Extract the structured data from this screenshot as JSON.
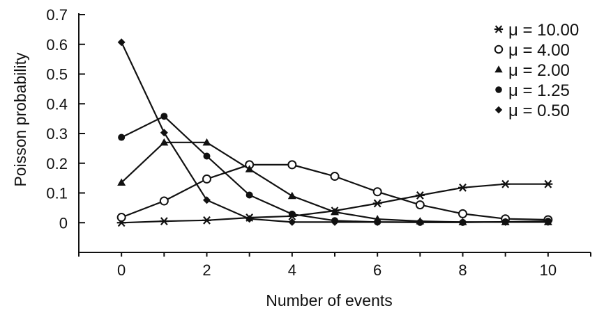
{
  "chart_data": {
    "type": "line",
    "title": "",
    "xlabel": "Number of events",
    "ylabel": "Poisson probability",
    "xlim": [
      -1,
      11
    ],
    "ylim": [
      -0.1,
      0.7
    ],
    "x_ticks": [
      0,
      2,
      4,
      6,
      8,
      10
    ],
    "x_tick_labels": [
      "0",
      "2",
      "4",
      "6",
      "8",
      "10"
    ],
    "y_ticks": [
      0,
      0.1,
      0.2,
      0.3,
      0.4,
      0.5,
      0.6,
      0.7
    ],
    "y_tick_labels": [
      "0",
      "0.1",
      "0.2",
      "0.3",
      "0.4",
      "0.5",
      "0.6",
      "0.7"
    ],
    "grid": false,
    "legend_position": "top-right",
    "x": [
      0,
      1,
      2,
      3,
      4,
      5,
      6,
      7,
      8,
      9,
      10
    ],
    "series": [
      {
        "name": "μ = 10.00",
        "marker": "asterisk",
        "color": "#111111",
        "values": [
          0.0,
          0.005,
          0.008,
          0.017,
          0.022,
          0.04,
          0.065,
          0.092,
          0.118,
          0.13,
          0.13
        ]
      },
      {
        "name": "μ = 4.00",
        "marker": "open-circle",
        "color": "#111111",
        "values": [
          0.018,
          0.073,
          0.147,
          0.195,
          0.195,
          0.156,
          0.104,
          0.06,
          0.03,
          0.013,
          0.01
        ]
      },
      {
        "name": "μ = 2.00",
        "marker": "triangle",
        "color": "#111111",
        "values": [
          0.135,
          0.27,
          0.27,
          0.18,
          0.09,
          0.036,
          0.012,
          0.005,
          0.002,
          0.002,
          0.002
        ]
      },
      {
        "name": "μ = 1.25",
        "marker": "filled-circle",
        "color": "#111111",
        "values": [
          0.287,
          0.358,
          0.224,
          0.093,
          0.029,
          0.007,
          0.002,
          0.001,
          0.001,
          0.003,
          0.005
        ]
      },
      {
        "name": "μ = 0.50",
        "marker": "diamond",
        "color": "#111111",
        "values": [
          0.607,
          0.303,
          0.076,
          0.013,
          0.002,
          0.002,
          0.002,
          0.002,
          0.002,
          0.002,
          0.002
        ]
      }
    ]
  }
}
